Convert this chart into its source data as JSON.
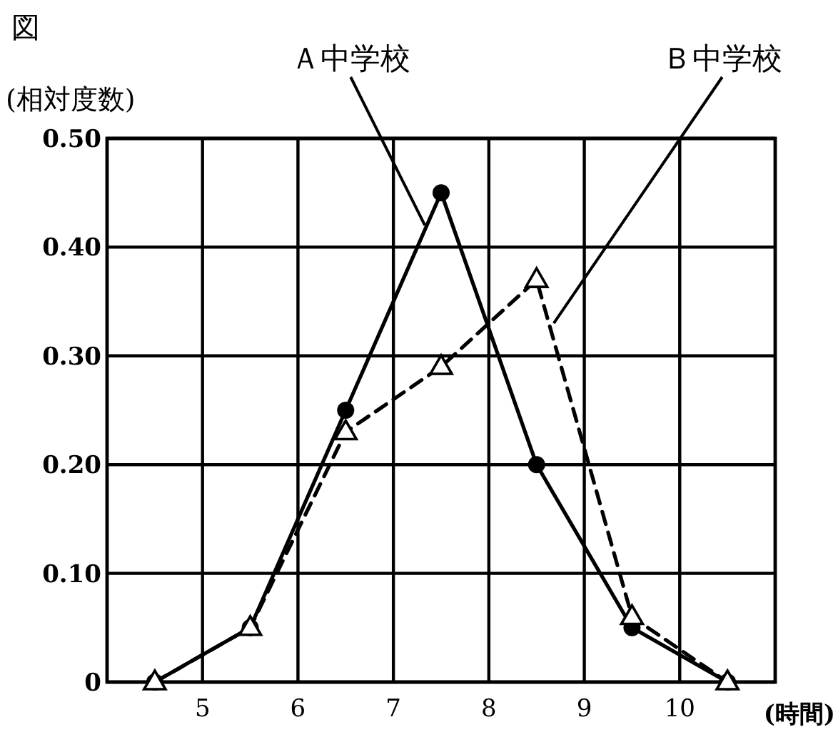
{
  "chart_data": {
    "type": "line",
    "title": "図",
    "ylabel": "(相対度数)",
    "xlabel": "(時間)",
    "xlim": [
      4,
      11
    ],
    "xticks": [
      5,
      6,
      7,
      8,
      9,
      10
    ],
    "ylim": [
      0,
      0.5
    ],
    "yticks": [
      0,
      {
        "value": 0.1,
        "label": "0.10"
      },
      {
        "value": 0.2,
        "label": "0.20"
      },
      {
        "value": 0.3,
        "label": "0.30"
      },
      {
        "value": 0.4,
        "label": "0.40"
      },
      {
        "value": 0.5,
        "label": "0.50"
      }
    ],
    "grid": true,
    "x": [
      4.5,
      5.5,
      6.5,
      7.5,
      8.5,
      9.5,
      10.5
    ],
    "series": [
      {
        "color": "#000000",
        "marker": "circle",
        "line_style": "solid",
        "values": [
          0,
          0.05,
          0.25,
          0.45,
          0.2,
          0.05,
          0
        ]
      },
      {
        "color": "#000000",
        "marker": "triangle",
        "line_style": "dashed",
        "values": [
          0,
          0.05,
          0.23,
          0.29,
          0.37,
          0.06,
          0
        ]
      }
    ],
    "annotations": [
      {
        "text": "Ａ中学校",
        "x": 7.33,
        "y": 0.42
      },
      {
        "text": "Ｂ中学校",
        "x": 8.68,
        "y": 0.33
      }
    ]
  }
}
